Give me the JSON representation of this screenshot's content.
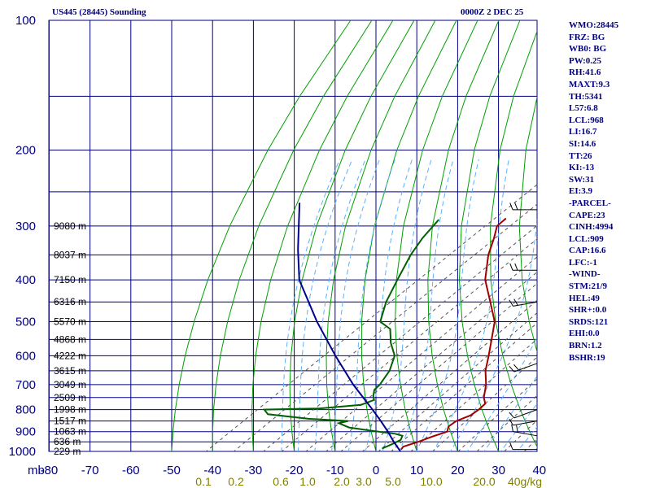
{
  "title_left": "US445 (28445) Sounding",
  "title_right": "0000Z  2 DEC 25",
  "indices": [
    "WMO:28445",
    "FRZ: BG",
    "WB0: BG",
    "PW:0.25",
    "RH:41.6",
    "MAXT:9.3",
    "TH:5341",
    "L57:6.8",
    "LCL:968",
    "LI:16.7",
    "SI:14.6",
    "TT:26",
    "KI:-13",
    "SW:31",
    "EI:3.9",
    "-PARCEL-",
    "CAPE:23",
    "CINH:4994",
    "LCL:909",
    "CAP:16.6",
    "LFC:-1",
    "-WIND-",
    "STM:21/9",
    "HEL:49",
    "SHR+:0.0",
    "SRDS:121",
    "EHI:0.0",
    "BRN:1.2",
    "BSHR:19"
  ],
  "chart_data": {
    "type": "line",
    "diagram": "skew-T log-P",
    "pressure_unit_label": "mb",
    "y_axis_scale": "log",
    "ylim": [
      1000,
      100
    ],
    "xlim": [
      -80,
      40
    ],
    "pressure_ticks": [
      100,
      200,
      300,
      400,
      500,
      600,
      700,
      800,
      900,
      1000
    ],
    "temperature_ticks": [
      -80,
      -70,
      -60,
      -50,
      -40,
      -30,
      -20,
      -10,
      0,
      10,
      20,
      30,
      40
    ],
    "mixing_ratio_labels": [
      "0.1",
      "0.2",
      "0.6",
      "1.0",
      "2.0",
      "3.0",
      "5.0",
      "10.0",
      "20.0",
      "40g/kg"
    ],
    "height_labels": [
      {
        "p": 300,
        "text": "9080 m"
      },
      {
        "p": 350,
        "text": "8037 m"
      },
      {
        "p": 400,
        "text": "7150 m"
      },
      {
        "p": 450,
        "text": "6316 m"
      },
      {
        "p": 500,
        "text": "5570 m"
      },
      {
        "p": 550,
        "text": "4868 m"
      },
      {
        "p": 600,
        "text": "4222 m"
      },
      {
        "p": 650,
        "text": "3615 m"
      },
      {
        "p": 700,
        "text": "3049 m"
      },
      {
        "p": 750,
        "text": "2509 m"
      },
      {
        "p": 800,
        "text": "1998 m"
      },
      {
        "p": 850,
        "text": "1517 m"
      },
      {
        "p": 900,
        "text": "1063 m"
      },
      {
        "p": 950,
        "text": "636 m"
      },
      {
        "p": 1000,
        "text": "229 m"
      }
    ],
    "series": [
      {
        "key": "temperature",
        "color": "#a00000",
        "points": [
          [
            990,
            5.5
          ],
          [
            975,
            5.0
          ],
          [
            950,
            7.0
          ],
          [
            925,
            8.5
          ],
          [
            900,
            10.5
          ],
          [
            875,
            9.0
          ],
          [
            850,
            9.0
          ],
          [
            825,
            10.5
          ],
          [
            800,
            10.5
          ],
          [
            775,
            10.0
          ],
          [
            750,
            7.5
          ],
          [
            700,
            3.5
          ],
          [
            650,
            -1.5
          ],
          [
            600,
            -6.0
          ],
          [
            550,
            -11.0
          ],
          [
            500,
            -16.5
          ],
          [
            450,
            -24.5
          ],
          [
            400,
            -33.5
          ],
          [
            350,
            -41.5
          ],
          [
            320,
            -46.0
          ],
          [
            300,
            -49.5
          ],
          [
            288,
            -50.0
          ]
        ]
      },
      {
        "key": "dewpoint",
        "color": "#006000",
        "points": [
          [
            985,
            0.5
          ],
          [
            960,
            1.5
          ],
          [
            940,
            2.0
          ],
          [
            920,
            1.0
          ],
          [
            910,
            -1.5
          ],
          [
            895,
            -8.5
          ],
          [
            880,
            -15.0
          ],
          [
            860,
            -19.0
          ],
          [
            850,
            -17.5
          ],
          [
            840,
            -28.0
          ],
          [
            820,
            -39.5
          ],
          [
            800,
            -42.0
          ],
          [
            795,
            -29.0
          ],
          [
            780,
            -20.0
          ],
          [
            760,
            -18.5
          ],
          [
            745,
            -20.0
          ],
          [
            720,
            -22.0
          ],
          [
            700,
            -22.5
          ],
          [
            650,
            -25.0
          ],
          [
            600,
            -29.0
          ],
          [
            560,
            -34.5
          ],
          [
            520,
            -39.5
          ],
          [
            500,
            -44.5
          ],
          [
            450,
            -50.0
          ],
          [
            400,
            -55.0
          ],
          [
            350,
            -60.5
          ],
          [
            320,
            -63.5
          ],
          [
            290,
            -66.0
          ]
        ]
      },
      {
        "key": "parcel",
        "color": "#000090",
        "points": [
          [
            1000,
            6.0
          ],
          [
            950,
            1.0
          ],
          [
            900,
            -4.0
          ],
          [
            850,
            -9.5
          ],
          [
            800,
            -15.5
          ],
          [
            700,
            -29.0
          ],
          [
            600,
            -43.5
          ],
          [
            500,
            -60.0
          ],
          [
            400,
            -79.0
          ],
          [
            340,
            -90.0
          ],
          [
            265,
            -106.0
          ]
        ]
      }
    ],
    "winds": [
      {
        "p": 990,
        "dir": 270,
        "spd": 5
      },
      {
        "p": 920,
        "dir": 280,
        "spd": 15
      },
      {
        "p": 850,
        "dir": 260,
        "spd": 10
      },
      {
        "p": 800,
        "dir": 250,
        "spd": 5
      },
      {
        "p": 625,
        "dir": 250,
        "spd": 15
      },
      {
        "p": 450,
        "dir": 260,
        "spd": 15
      },
      {
        "p": 380,
        "dir": 270,
        "spd": 20
      },
      {
        "p": 275,
        "dir": 270,
        "spd": 20
      }
    ]
  }
}
